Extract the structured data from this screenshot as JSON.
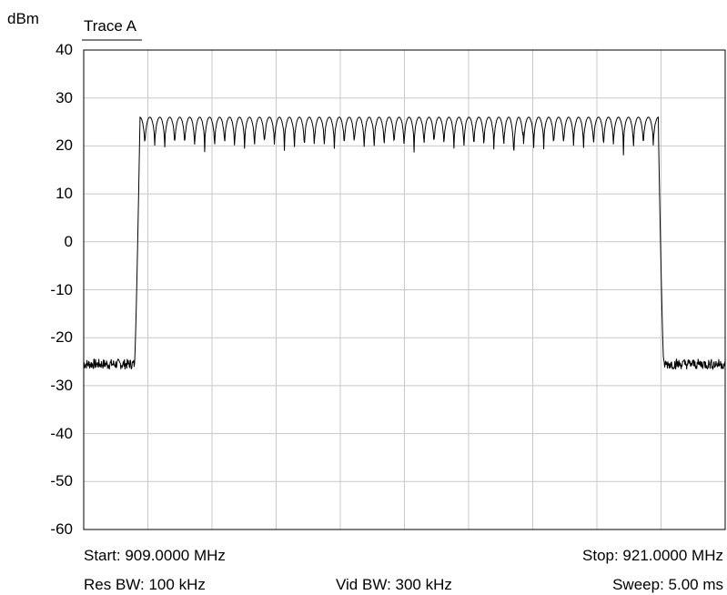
{
  "chart_data": {
    "type": "line",
    "unit_label": "dBm",
    "trace_label": "Trace A",
    "y_ticks": [
      "40",
      "30",
      "20",
      "10",
      "0",
      "-10",
      "-20",
      "-30",
      "-40",
      "-50",
      "-60"
    ],
    "ylim": [
      -60,
      40
    ],
    "xlim_mhz": [
      909.0,
      921.0
    ],
    "x_divisions": 10,
    "grid": true,
    "footer": {
      "start": "Start: 909.0000 MHz",
      "stop": "Stop: 921.0000 MHz",
      "res_bw": "Res BW: 100 kHz",
      "vid_bw": "Vid BW: 300 kHz",
      "sweep": "Sweep: 5.00 ms"
    },
    "series": [
      {
        "noise_floor_dbm": -25.5,
        "band_start_mhz": 909.95,
        "band_stop_mhz": 919.85,
        "peak_dbm": 26,
        "trough_dbm": 18,
        "deep_trough_dbm": 15,
        "deep_trough_mhz": 917.1,
        "ripple_count": 52
      }
    ]
  }
}
